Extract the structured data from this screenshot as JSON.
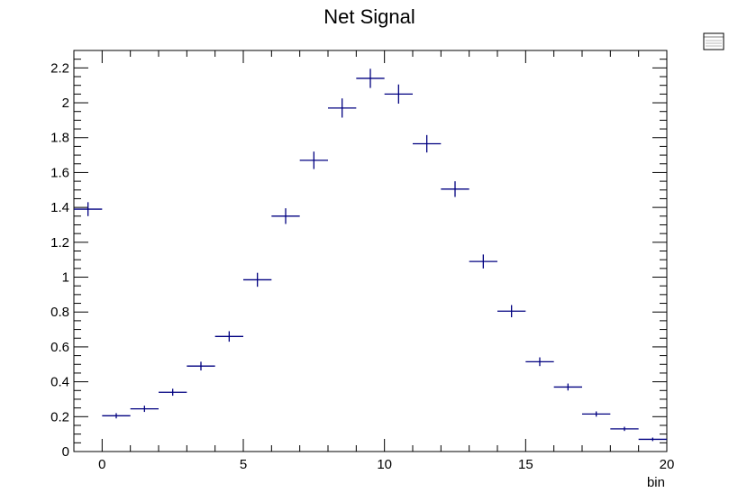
{
  "chart_data": {
    "type": "scatter",
    "title": "Net Signal",
    "xlabel": "bin",
    "ylabel": "",
    "xlim": [
      -1,
      20
    ],
    "ylim": [
      0,
      2.3
    ],
    "x_ticks": [
      0,
      5,
      10,
      15,
      20
    ],
    "y_ticks": [
      0,
      0.2,
      0.4,
      0.6,
      0.8,
      1,
      1.2,
      1.4,
      1.6,
      1.8,
      2,
      2.2
    ],
    "grid": false,
    "legend": "top-right (stats box, unreadable)",
    "series": [
      {
        "color": "#000080",
        "points": [
          {
            "x": -0.5,
            "y": 1.39,
            "xerr": 0.5,
            "yerr": 0.04
          },
          {
            "x": 0.5,
            "y": 0.205,
            "xerr": 0.5,
            "yerr": 0.015
          },
          {
            "x": 1.5,
            "y": 0.245,
            "xerr": 0.5,
            "yerr": 0.018
          },
          {
            "x": 2.5,
            "y": 0.34,
            "xerr": 0.5,
            "yerr": 0.02
          },
          {
            "x": 3.5,
            "y": 0.49,
            "xerr": 0.5,
            "yerr": 0.025
          },
          {
            "x": 4.5,
            "y": 0.66,
            "xerr": 0.5,
            "yerr": 0.03
          },
          {
            "x": 5.5,
            "y": 0.985,
            "xerr": 0.5,
            "yerr": 0.04
          },
          {
            "x": 6.5,
            "y": 1.35,
            "xerr": 0.5,
            "yerr": 0.045
          },
          {
            "x": 7.5,
            "y": 1.67,
            "xerr": 0.5,
            "yerr": 0.05
          },
          {
            "x": 8.5,
            "y": 1.97,
            "xerr": 0.5,
            "yerr": 0.055
          },
          {
            "x": 9.5,
            "y": 2.14,
            "xerr": 0.5,
            "yerr": 0.055
          },
          {
            "x": 10.5,
            "y": 2.05,
            "xerr": 0.5,
            "yerr": 0.055
          },
          {
            "x": 11.5,
            "y": 1.765,
            "xerr": 0.5,
            "yerr": 0.05
          },
          {
            "x": 12.5,
            "y": 1.505,
            "xerr": 0.5,
            "yerr": 0.045
          },
          {
            "x": 13.5,
            "y": 1.09,
            "xerr": 0.5,
            "yerr": 0.04
          },
          {
            "x": 14.5,
            "y": 0.805,
            "xerr": 0.5,
            "yerr": 0.035
          },
          {
            "x": 15.5,
            "y": 0.515,
            "xerr": 0.5,
            "yerr": 0.025
          },
          {
            "x": 16.5,
            "y": 0.37,
            "xerr": 0.5,
            "yerr": 0.02
          },
          {
            "x": 17.5,
            "y": 0.215,
            "xerr": 0.5,
            "yerr": 0.015
          },
          {
            "x": 18.5,
            "y": 0.13,
            "xerr": 0.5,
            "yerr": 0.012
          },
          {
            "x": 19.5,
            "y": 0.07,
            "xerr": 0.5,
            "yerr": 0.01
          }
        ]
      }
    ]
  }
}
